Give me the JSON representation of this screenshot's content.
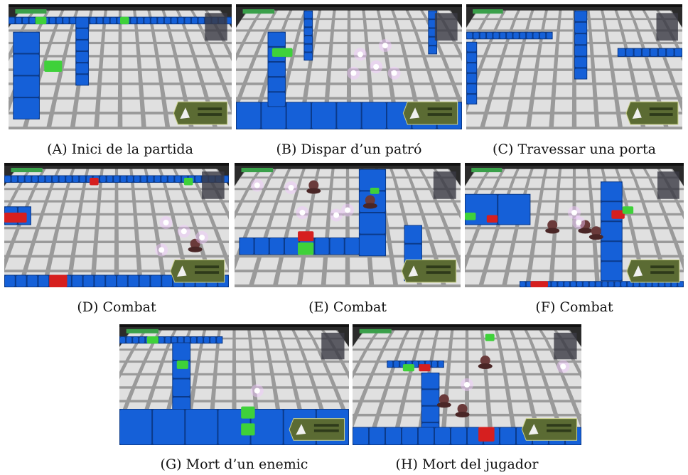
{
  "figure": {
    "panels": [
      {
        "id": "a",
        "letter": "A",
        "caption": "Inici de la partida",
        "scene": "start"
      },
      {
        "id": "b",
        "letter": "B",
        "caption": "Dispar d’un patró",
        "scene": "shot"
      },
      {
        "id": "c",
        "letter": "C",
        "caption": "Travessar una porta",
        "scene": "door"
      },
      {
        "id": "d",
        "letter": "D",
        "caption": "Combat",
        "scene": "combat1"
      },
      {
        "id": "e",
        "letter": "E",
        "caption": "Combat",
        "scene": "combat2"
      },
      {
        "id": "f",
        "letter": "F",
        "caption": "Combat",
        "scene": "combat3"
      },
      {
        "id": "g",
        "letter": "G",
        "caption": "Mort d’un enemic",
        "scene": "enemy-death"
      },
      {
        "id": "h",
        "letter": "H",
        "caption": "Mort del jugador",
        "scene": "player-death"
      }
    ]
  },
  "colors": {
    "floor": "#9a9a9a",
    "floor_tile": "#e6e6e6",
    "wall_blue": "#1560d8",
    "door_green": "#3fd13a",
    "door_red": "#d61f1f",
    "hud_panel": "#5b6b33",
    "enemy": "#6a3a3a",
    "glow": "#f2c8ff"
  }
}
